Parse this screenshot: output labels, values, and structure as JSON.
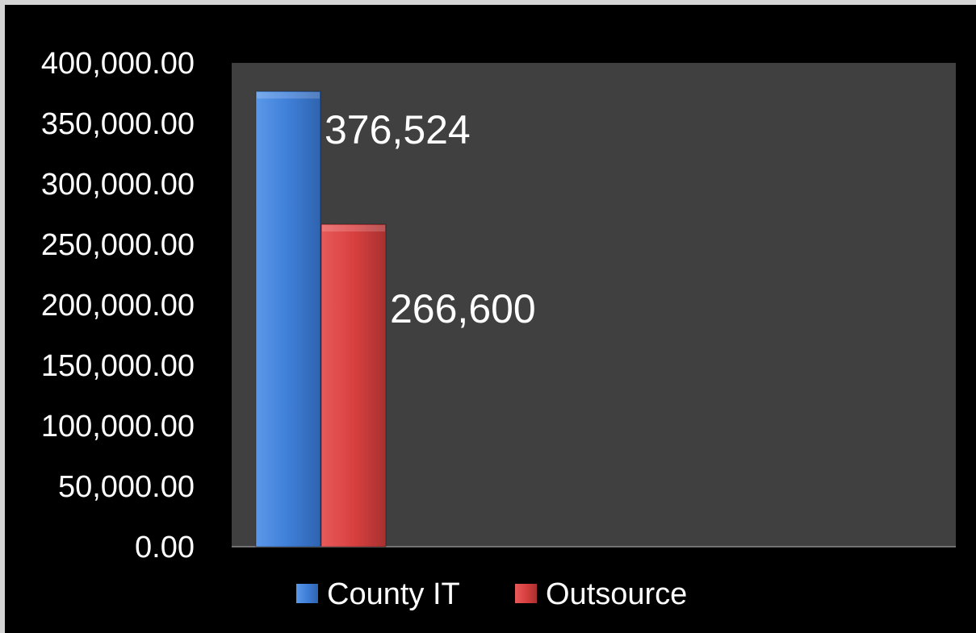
{
  "chart_data": {
    "type": "bar",
    "categories": [
      ""
    ],
    "series": [
      {
        "name": "County IT",
        "values": [
          376524
        ],
        "label": "376,524",
        "color": "#3f7fd8"
      },
      {
        "name": "Outsource",
        "values": [
          266600
        ],
        "label": "266,600",
        "color": "#d94040"
      }
    ],
    "ylim": [
      0,
      400000
    ],
    "yticks": [
      0,
      50000,
      100000,
      150000,
      200000,
      250000,
      300000,
      350000,
      400000
    ],
    "ytick_labels": [
      "0.00",
      "50,000.00",
      "100,000.00",
      "150,000.00",
      "200,000.00",
      "250,000.00",
      "300,000.00",
      "350,000.00",
      "400,000.00"
    ],
    "grid": false,
    "legend_position": "bottom",
    "plot_background": "#404040",
    "background": "#000000"
  }
}
